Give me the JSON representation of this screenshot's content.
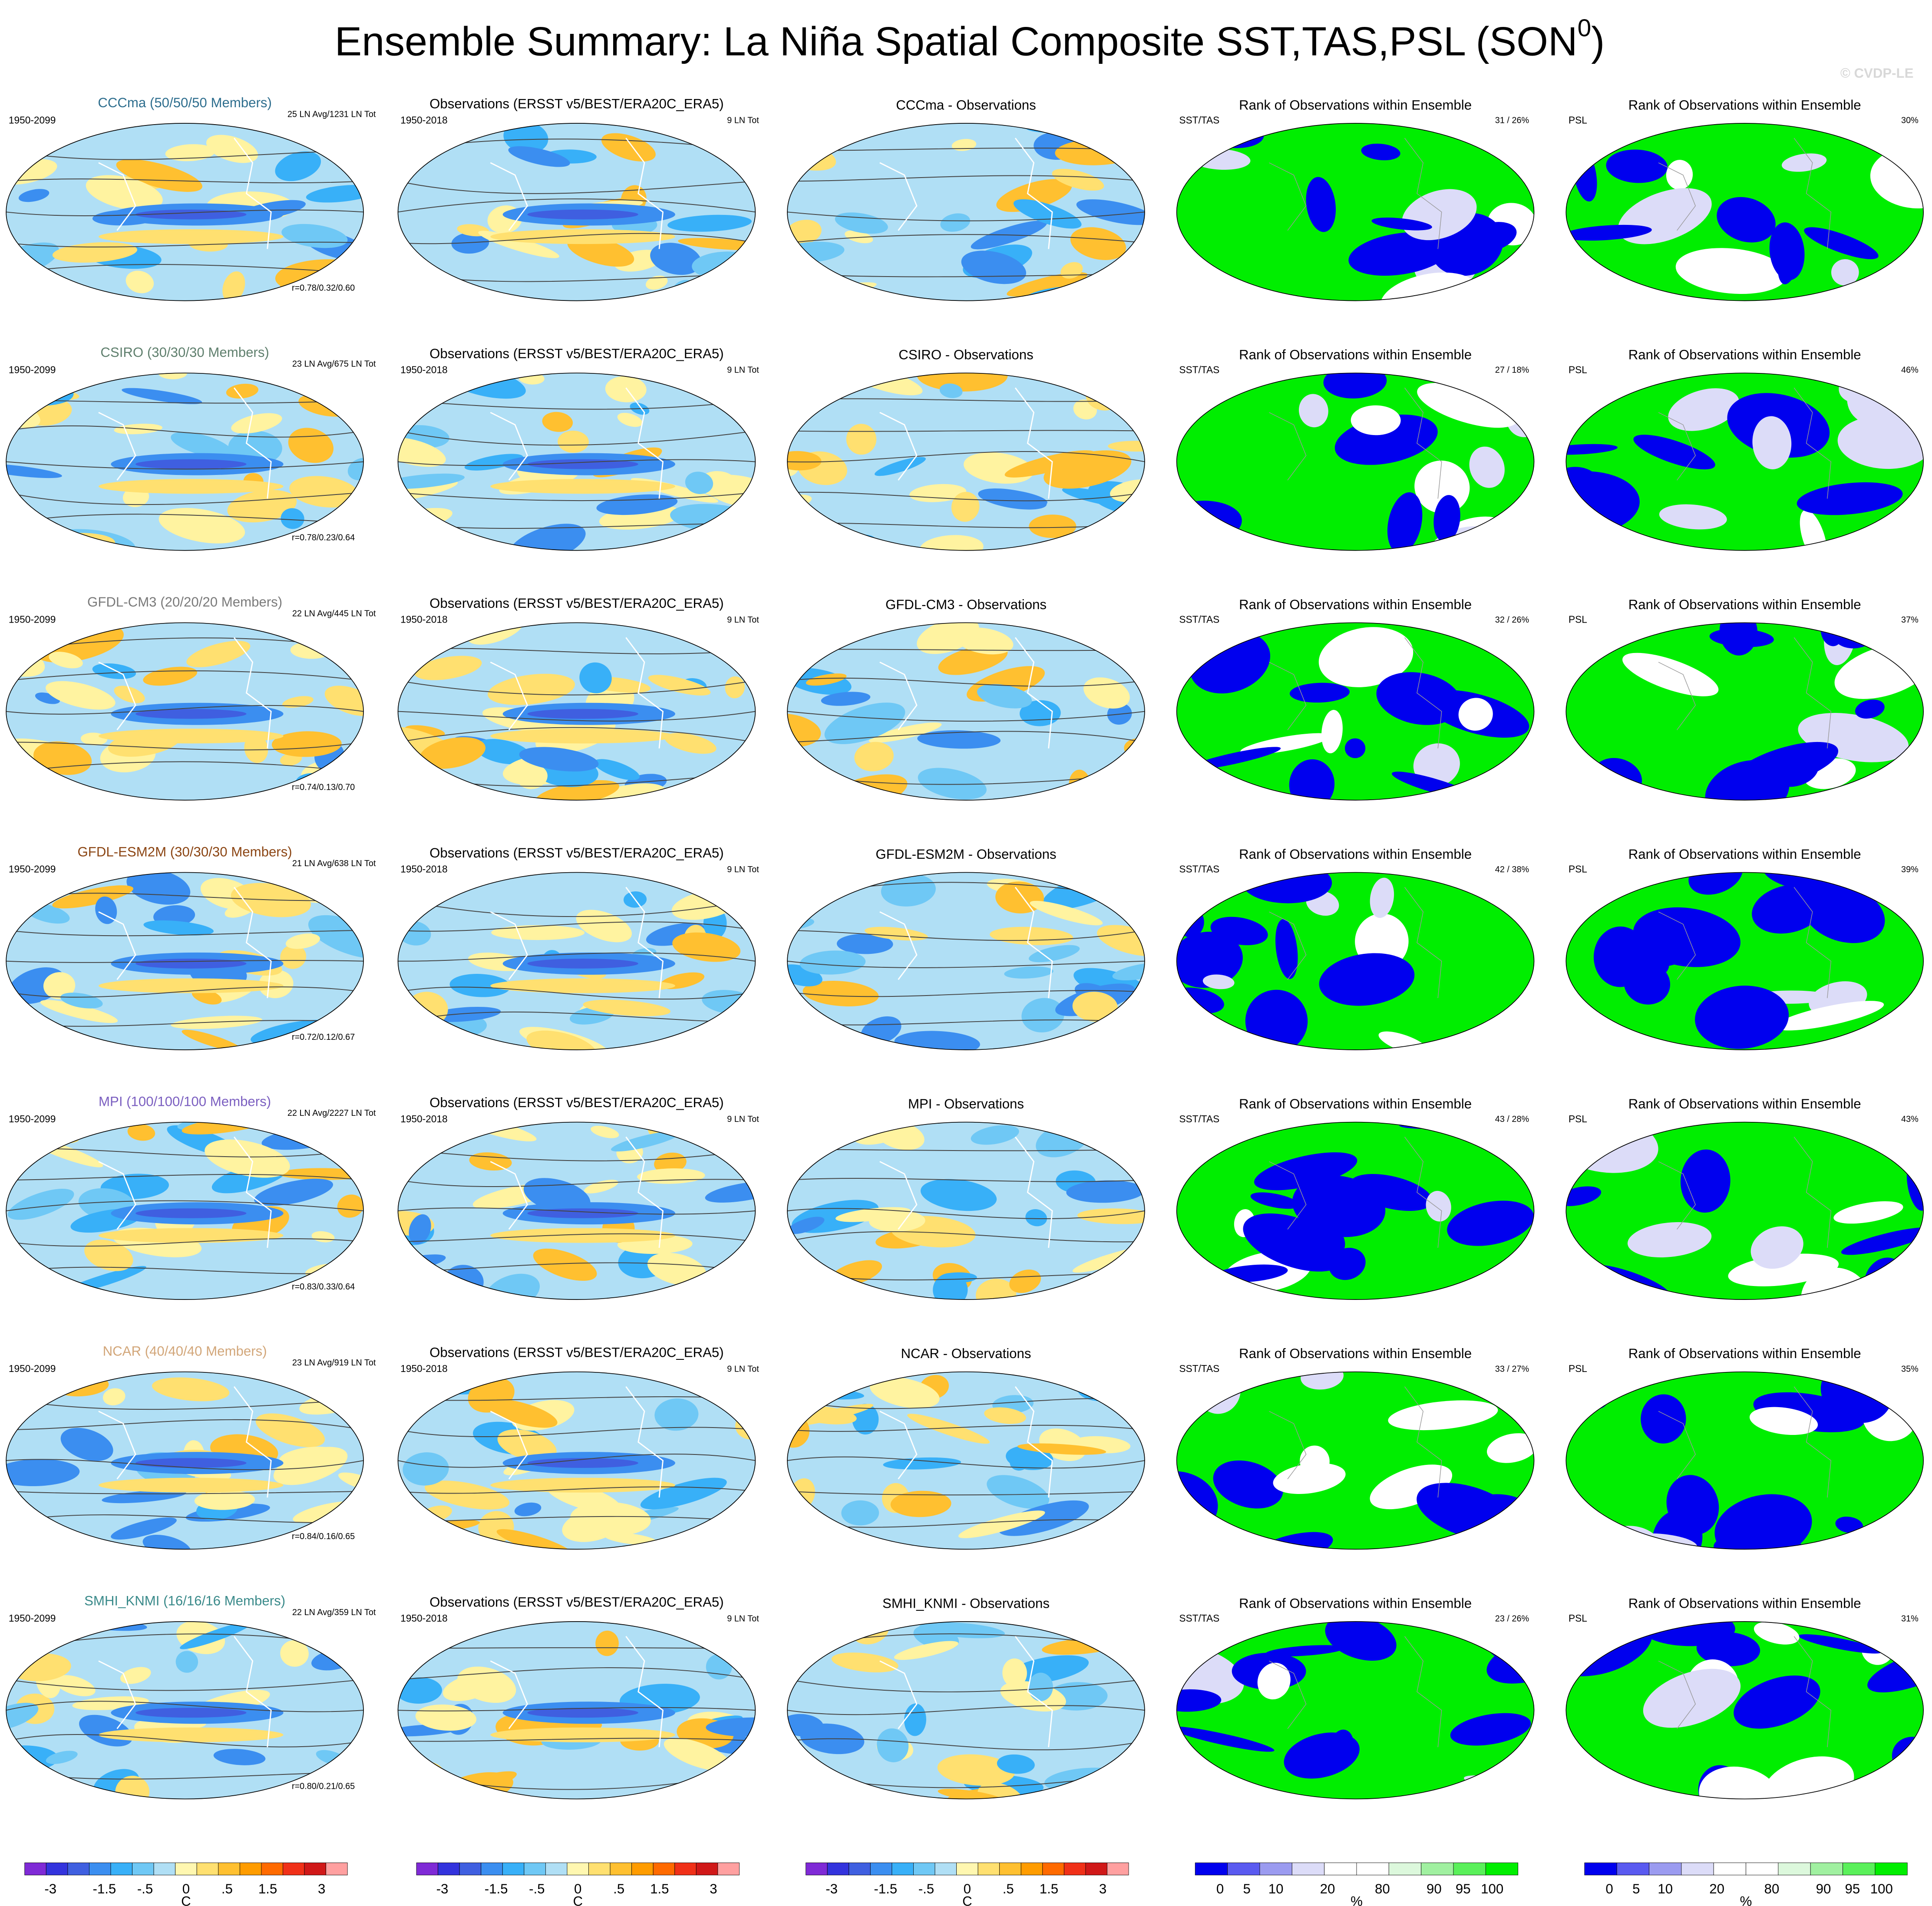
{
  "title": {
    "main": "Ensemble Summary: La Niña Spatial Composite SST,TAS,PSL (SON",
    "sup": "0",
    "end": ")"
  },
  "watermark": "© CVDP-LE",
  "rows": [
    {
      "model_title": "CCCma (50/50/50 Members)",
      "model_color": "#2e6e8e",
      "period": "1950-2099",
      "counts": "25 LN Avg/1231 LN Tot",
      "r": "r=0.78/0.32/0.60",
      "obs_title": "Observations (ERSST v5/BEST/ERA20C_ERA5)",
      "obs_period": "1950-2018",
      "obs_count": "9 LN Tot",
      "diff_title": "CCCma - Observations",
      "rank_title": "Rank of Observations within Ensemble",
      "rank_label": "SST/TAS",
      "rank_pct": "31 /  26%",
      "psl_title": "Rank of Observations within Ensemble",
      "psl_label": "PSL",
      "psl_pct": "30%"
    },
    {
      "model_title": "CSIRO (30/30/30 Members)",
      "model_color": "#5f7f6d",
      "period": "1950-2099",
      "counts": "23 LN Avg/675 LN Tot",
      "r": "r=0.78/0.23/0.64",
      "obs_title": "Observations (ERSST v5/BEST/ERA20C_ERA5)",
      "obs_period": "1950-2018",
      "obs_count": "9 LN Tot",
      "diff_title": "CSIRO - Observations",
      "rank_title": "Rank of Observations within Ensemble",
      "rank_label": "SST/TAS",
      "rank_pct": "27 /  18%",
      "psl_title": "Rank of Observations within Ensemble",
      "psl_label": "PSL",
      "psl_pct": "46%"
    },
    {
      "model_title": "GFDL-CM3 (20/20/20 Members)",
      "model_color": "#7a7a7a",
      "period": "1950-2099",
      "counts": "22 LN Avg/445 LN Tot",
      "r": "r=0.74/0.13/0.70",
      "obs_title": "Observations (ERSST v5/BEST/ERA20C_ERA5)",
      "obs_period": "1950-2018",
      "obs_count": "9 LN Tot",
      "diff_title": "GFDL-CM3 - Observations",
      "rank_title": "Rank of Observations within Ensemble",
      "rank_label": "SST/TAS",
      "rank_pct": "32 /  26%",
      "psl_title": "Rank of Observations within Ensemble",
      "psl_label": "PSL",
      "psl_pct": "37%"
    },
    {
      "model_title": "GFDL-ESM2M (30/30/30 Members)",
      "model_color": "#8b4513",
      "period": "1950-2099",
      "counts": "21 LN Avg/638 LN Tot",
      "r": "r=0.72/0.12/0.67",
      "obs_title": "Observations (ERSST v5/BEST/ERA20C_ERA5)",
      "obs_period": "1950-2018",
      "obs_count": "9 LN Tot",
      "diff_title": "GFDL-ESM2M - Observations",
      "rank_title": "Rank of Observations within Ensemble",
      "rank_label": "SST/TAS",
      "rank_pct": "42 /  38%",
      "psl_title": "Rank of Observations within Ensemble",
      "psl_label": "PSL",
      "psl_pct": "39%"
    },
    {
      "model_title": "MPI (100/100/100 Members)",
      "model_color": "#7b5fc0",
      "period": "1950-2099",
      "counts": "22 LN Avg/2227 LN Tot",
      "r": "r=0.83/0.33/0.64",
      "obs_title": "Observations (ERSST v5/BEST/ERA20C_ERA5)",
      "obs_period": "1950-2018",
      "obs_count": "9 LN Tot",
      "diff_title": "MPI - Observations",
      "rank_title": "Rank of Observations within Ensemble",
      "rank_label": "SST/TAS",
      "rank_pct": "43 /  28%",
      "psl_title": "Rank of Observations within Ensemble",
      "psl_label": "PSL",
      "psl_pct": "43%"
    },
    {
      "model_title": "NCAR (40/40/40 Members)",
      "model_color": "#d2a679",
      "period": "1950-2099",
      "counts": "23 LN Avg/919 LN Tot",
      "r": "r=0.84/0.16/0.65",
      "obs_title": "Observations (ERSST v5/BEST/ERA20C_ERA5)",
      "obs_period": "1950-2018",
      "obs_count": "9 LN Tot",
      "diff_title": "NCAR - Observations",
      "rank_title": "Rank of Observations within Ensemble",
      "rank_label": "SST/TAS",
      "rank_pct": "33 /  27%",
      "psl_title": "Rank of Observations within Ensemble",
      "psl_label": "PSL",
      "psl_pct": "35%"
    },
    {
      "model_title": "SMHI_KNMI (16/16/16 Members)",
      "model_color": "#3a8a8a",
      "period": "1950-2099",
      "counts": "22 LN Avg/359 LN Tot",
      "r": "r=0.80/0.21/0.65",
      "obs_title": "Observations (ERSST v5/BEST/ERA20C_ERA5)",
      "obs_period": "1950-2018",
      "obs_count": "9 LN Tot",
      "diff_title": "SMHI_KNMI - Observations",
      "rank_title": "Rank of Observations within Ensemble",
      "rank_label": "SST/TAS",
      "rank_pct": "23 /  26%",
      "psl_title": "Rank of Observations within Ensemble",
      "psl_label": "PSL",
      "psl_pct": "31%"
    }
  ],
  "colorbars": [
    {
      "colors": [
        "#7f2ad6",
        "#3333dd",
        "#3f5fe0",
        "#3b8ef0",
        "#38b0f8",
        "#6fc8f5",
        "#b0dff5",
        "#fff7b0",
        "#ffe070",
        "#ffc030",
        "#ff9c00",
        "#ff6a00",
        "#f03018",
        "#d01818",
        "#ffa0a0"
      ],
      "labels": [
        "-3",
        "-1.5",
        "-.5",
        "0",
        ".5",
        "1.5",
        "3"
      ],
      "unit": "C"
    },
    {
      "colors": [
        "#7f2ad6",
        "#3333dd",
        "#3f5fe0",
        "#3b8ef0",
        "#38b0f8",
        "#6fc8f5",
        "#b0dff5",
        "#fff7b0",
        "#ffe070",
        "#ffc030",
        "#ff9c00",
        "#ff6a00",
        "#f03018",
        "#d01818",
        "#ffa0a0"
      ],
      "labels": [
        "-3",
        "-1.5",
        "-.5",
        "0",
        ".5",
        "1.5",
        "3"
      ],
      "unit": "C"
    },
    {
      "colors": [
        "#7f2ad6",
        "#3333dd",
        "#3f5fe0",
        "#3b8ef0",
        "#38b0f8",
        "#6fc8f5",
        "#b0dff5",
        "#fff7b0",
        "#ffe070",
        "#ffc030",
        "#ff9c00",
        "#ff6a00",
        "#f03018",
        "#d01818",
        "#ffa0a0"
      ],
      "labels": [
        "-3",
        "-1.5",
        "-.5",
        "0",
        ".5",
        "1.5",
        "3"
      ],
      "unit": "C"
    },
    {
      "colors": [
        "#0000ee",
        "#5a5af0",
        "#9b9bf0",
        "#dcdcf8",
        "#ffffff",
        "#ffffff",
        "#dcf8dc",
        "#a0f0a0",
        "#5af05a",
        "#00ee00"
      ],
      "labels": [
        "0",
        "5",
        "10",
        "20",
        "80",
        "90",
        "95",
        "100"
      ],
      "unit": "%"
    },
    {
      "colors": [
        "#0000ee",
        "#5a5af0",
        "#9b9bf0",
        "#dcdcf8",
        "#ffffff",
        "#ffffff",
        "#dcf8dc",
        "#a0f0a0",
        "#5af05a",
        "#00ee00"
      ],
      "labels": [
        "0",
        "5",
        "10",
        "20",
        "80",
        "90",
        "95",
        "100"
      ],
      "unit": "%"
    }
  ]
}
